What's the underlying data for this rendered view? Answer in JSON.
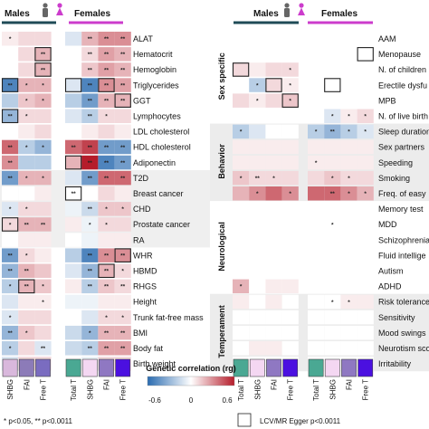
{
  "chart_data": {
    "type": "heatmap",
    "title": "",
    "legend": {
      "title": "Genetic correlation (rg)",
      "ticks": [
        "-0.6",
        "0",
        "0.6"
      ],
      "range": [
        -0.6,
        0.6
      ],
      "colors": {
        "low": "#2a6bb0",
        "mid": "#ffffff",
        "high": "#b51c2a"
      }
    },
    "group_labels": {
      "males": "Males",
      "females": "Females"
    },
    "columns_left": [
      "SHBG",
      "FAI",
      "Free T",
      "Total T",
      "SHBG",
      "FAI",
      "Free T"
    ],
    "columns_right": [
      "Total T",
      "SHBG",
      "FAI",
      "Free T",
      "Total T",
      "SHBG",
      "FAI",
      "Free T"
    ],
    "column_colors": {
      "left": [
        "#d9b8dc",
        "#8c7bb8",
        "#7a6cc0",
        "#4aa893",
        "#f4d7f2",
        "#8f78c2",
        "#4b10e0"
      ],
      "right": [
        "#4aa893",
        "#f4d7f2",
        "#8f78c2",
        "#4b10e0",
        "#4aa893",
        "#f4d7f2",
        "#8f78c2",
        "#4b10e0"
      ]
    },
    "rows_left": [
      "ALAT",
      "Hematocrit",
      "Hemoglobin",
      "Triglycerides",
      "GGT",
      "Lymphocytes",
      "LDL cholesterol",
      "HDL cholesterol",
      "Adiponectin",
      "T2D",
      "Breast cancer",
      "CHD",
      "Prostate cancer",
      "RA",
      "WHR",
      "HBMD",
      "RHGS",
      "Height",
      "Trunk fat-free mass",
      "BMI",
      "Body fat",
      "Birth weight"
    ],
    "rows_right": [
      "AAM",
      "Menopause",
      "N. of children",
      "Erectile dysfu",
      "MPB",
      "N. of live birth",
      "Sleep duration",
      "Sex partners",
      "Speeding",
      "Smoking",
      "Freq. of easy",
      "Memory test",
      "MDD",
      "Schizophrenia",
      "Fluid intellige",
      "Autism",
      "ADHD",
      "Risk tolerance",
      "Sensitivity",
      "Mood swings",
      "Neurotism sco",
      "Irritability"
    ],
    "categories_right": [
      {
        "label": "Sex specific",
        "from": 0,
        "to": 5
      },
      {
        "label": "Behavior",
        "from": 6,
        "to": 10
      },
      {
        "label": "Neurological",
        "from": 11,
        "to": 16
      },
      {
        "label": "Temperament",
        "from": 17,
        "to": 21
      }
    ],
    "values_left": [
      [
        0.05,
        0.1,
        0.1,
        -0.1,
        0.2,
        0.3,
        0.3
      ],
      [
        0.0,
        0.1,
        0.2,
        0.0,
        0.1,
        0.25,
        0.2
      ],
      [
        0.0,
        0.1,
        0.2,
        0.0,
        0.15,
        0.25,
        0.2
      ],
      [
        -0.5,
        0.2,
        0.2,
        -0.1,
        -0.5,
        0.3,
        0.25
      ],
      [
        -0.2,
        0.15,
        0.2,
        -0.2,
        -0.4,
        0.2,
        0.2
      ],
      [
        -0.3,
        0.1,
        0.1,
        -0.1,
        -0.2,
        0.1,
        0.1
      ],
      [
        0.0,
        0.05,
        0.1,
        0.0,
        0.05,
        0.1,
        0.05
      ],
      [
        0.4,
        -0.2,
        -0.3,
        0.4,
        0.5,
        -0.4,
        -0.4
      ],
      [
        0.3,
        -0.2,
        -0.2,
        0.2,
        0.6,
        -0.5,
        -0.4
      ],
      [
        -0.4,
        0.2,
        0.2,
        -0.1,
        -0.4,
        0.4,
        0.4
      ],
      [
        0.0,
        0.0,
        0.05,
        0.0,
        0.0,
        0.1,
        0.05
      ],
      [
        -0.1,
        0.1,
        0.1,
        -0.05,
        -0.15,
        0.15,
        0.15
      ],
      [
        0.1,
        0.2,
        0.2,
        0.05,
        -0.05,
        0.1,
        0.1
      ],
      [
        0.0,
        0.05,
        0.05,
        0.0,
        -0.05,
        0.05,
        0.05
      ],
      [
        -0.4,
        0.1,
        0.05,
        -0.2,
        -0.5,
        0.3,
        0.3
      ],
      [
        -0.3,
        0.2,
        0.15,
        -0.1,
        -0.3,
        0.2,
        0.1
      ],
      [
        -0.2,
        0.2,
        0.15,
        0.05,
        -0.2,
        0.15,
        0.1
      ],
      [
        -0.1,
        0.05,
        0.05,
        -0.05,
        -0.05,
        0.05,
        0.05
      ],
      [
        -0.1,
        0.1,
        0.1,
        0.0,
        -0.1,
        0.1,
        0.1
      ],
      [
        -0.3,
        0.15,
        0.1,
        -0.15,
        -0.3,
        0.2,
        0.2
      ],
      [
        -0.2,
        0.1,
        -0.1,
        -0.15,
        -0.2,
        0.25,
        0.25
      ],
      [
        -0.1,
        0.1,
        0.1,
        0.0,
        -0.05,
        0.1,
        0.1
      ]
    ],
    "stars_left": [
      [
        "*",
        "",
        "",
        "",
        "**",
        "**",
        "**"
      ],
      [
        "",
        "",
        "**",
        "",
        "**",
        "**",
        "**"
      ],
      [
        "",
        "",
        "**",
        "",
        "**",
        "**",
        "**"
      ],
      [
        "**",
        "*",
        "*",
        "",
        "**",
        "**",
        "**"
      ],
      [
        "",
        "*",
        "*",
        "",
        "**",
        "**",
        "**"
      ],
      [
        "**",
        "*",
        "",
        "",
        "**",
        "*",
        ""
      ],
      [
        "",
        "",
        "",
        "",
        "",
        "",
        ""
      ],
      [
        "**",
        "*",
        "*",
        "**",
        "**",
        "**",
        "**"
      ],
      [
        "**",
        "",
        "",
        "",
        "**",
        "**",
        "**"
      ],
      [
        "**",
        "*",
        "*",
        "",
        "**",
        "**",
        "**"
      ],
      [
        "",
        "",
        "",
        "**",
        "",
        "",
        ""
      ],
      [
        "*",
        "*",
        "",
        "",
        "**",
        "*",
        "*"
      ],
      [
        "*",
        "**",
        "**",
        "",
        "*",
        "*",
        ""
      ],
      [
        "",
        "",
        "",
        "",
        "",
        "",
        ""
      ],
      [
        "**",
        "*",
        "",
        "",
        "**",
        "**",
        "**"
      ],
      [
        "**",
        "**",
        "",
        "",
        "**",
        "**",
        "*"
      ],
      [
        "*",
        "**",
        "*",
        "",
        "**",
        "**",
        "**"
      ],
      [
        "",
        "",
        "*",
        "",
        "",
        "",
        ""
      ],
      [
        "*",
        "",
        "",
        "",
        "",
        "*",
        "*"
      ],
      [
        "**",
        "*",
        "",
        "",
        "*",
        "**",
        "**"
      ],
      [
        "*",
        "",
        "**",
        "",
        "**",
        "**",
        "**"
      ],
      [
        "*",
        "*",
        "*",
        "",
        "*",
        "*",
        "**"
      ]
    ],
    "boxes_left": [
      [
        1,
        2
      ],
      [
        2,
        2
      ],
      [
        3,
        0
      ],
      [
        3,
        3
      ],
      [
        3,
        5
      ],
      [
        4,
        6
      ],
      [
        5,
        0
      ],
      [
        8,
        3
      ],
      [
        10,
        3
      ],
      [
        12,
        0
      ],
      [
        14,
        6
      ],
      [
        15,
        5
      ],
      [
        16,
        1
      ]
    ],
    "values_right": [
      [
        0.0,
        0.0,
        0.0,
        0.0,
        0.0,
        0.0,
        0.0,
        0.0
      ],
      [
        0.0,
        0.0,
        0.0,
        0.0,
        0.0,
        0.0,
        0.0,
        0.0
      ],
      [
        0.1,
        0.05,
        0.1,
        0.1,
        0.0,
        0.0,
        0.0,
        0.0
      ],
      [
        0.0,
        -0.2,
        0.1,
        0.05,
        0.0,
        0.0,
        0.0,
        0.0
      ],
      [
        0.1,
        0.05,
        0.1,
        0.15,
        0.0,
        0.0,
        0.0,
        0.0
      ],
      [
        0.0,
        0.0,
        0.0,
        0.0,
        0.0,
        -0.1,
        0.05,
        0.1
      ],
      [
        -0.2,
        -0.1,
        0.0,
        0.0,
        -0.2,
        -0.3,
        -0.2,
        -0.1
      ],
      [
        0.05,
        0.05,
        0.05,
        0.05,
        0.05,
        0.05,
        0.05,
        0.05
      ],
      [
        0.05,
        0.05,
        0.05,
        0.05,
        0.05,
        0.05,
        0.05,
        0.05
      ],
      [
        0.15,
        0.1,
        0.1,
        0.1,
        0.1,
        0.15,
        0.1,
        0.1
      ],
      [
        0.2,
        0.3,
        0.4,
        0.3,
        0.4,
        0.4,
        0.3,
        0.2
      ],
      [
        0.0,
        0.0,
        0.0,
        0.0,
        0.0,
        0.0,
        0.0,
        0.0
      ],
      [
        0.0,
        0.0,
        0.0,
        0.0,
        0.0,
        0.0,
        0.0,
        0.0
      ],
      [
        0.0,
        0.0,
        0.0,
        0.0,
        0.0,
        0.0,
        0.0,
        0.0
      ],
      [
        0.0,
        0.0,
        0.0,
        0.0,
        0.0,
        0.0,
        0.0,
        0.0
      ],
      [
        0.0,
        0.0,
        0.0,
        0.0,
        0.0,
        0.0,
        0.0,
        0.0
      ],
      [
        0.2,
        0.0,
        0.05,
        0.05,
        0.0,
        0.0,
        0.0,
        0.0
      ],
      [
        0.05,
        0.0,
        0.05,
        0.0,
        0.0,
        0.0,
        0.05,
        0.05
      ],
      [
        0.0,
        0.0,
        0.0,
        0.0,
        0.0,
        0.0,
        0.0,
        0.0
      ],
      [
        0.0,
        0.0,
        0.0,
        0.0,
        0.0,
        0.0,
        0.0,
        0.0
      ],
      [
        0.0,
        0.05,
        0.05,
        0.0,
        0.0,
        0.0,
        0.0,
        0.0
      ],
      [
        0.0,
        0.0,
        0.0,
        0.0,
        0.0,
        0.0,
        0.0,
        0.0
      ]
    ],
    "stars_right": [
      [
        "",
        "",
        "",
        "",
        "",
        "",
        "",
        ""
      ],
      [
        "",
        "",
        "",
        "",
        "",
        "",
        "",
        ""
      ],
      [
        "",
        "",
        "",
        "*",
        "",
        "",
        "",
        ""
      ],
      [
        "",
        "*",
        "",
        "*",
        "",
        "",
        "",
        ""
      ],
      [
        "",
        "*",
        "",
        "*",
        "",
        "",
        "",
        ""
      ],
      [
        "",
        "",
        "",
        "",
        "",
        "*",
        "*",
        "*"
      ],
      [
        "*",
        "",
        "",
        "",
        "*",
        "**",
        "*",
        "*"
      ],
      [
        "",
        "",
        "",
        "",
        "",
        "",
        "",
        ""
      ],
      [
        "",
        "",
        "",
        "",
        "*",
        "",
        "",
        ""
      ],
      [
        "*",
        "**",
        "*",
        "",
        "",
        "*",
        "*",
        ""
      ],
      [
        "",
        "*",
        "",
        "*",
        "",
        "**",
        "*",
        "*"
      ],
      [
        "",
        "",
        "",
        "",
        "",
        "",
        "",
        ""
      ],
      [
        "",
        "",
        "",
        "",
        "",
        "*",
        "",
        ""
      ],
      [
        "",
        "",
        "",
        "",
        "",
        "",
        "",
        ""
      ],
      [
        "",
        "",
        "",
        "",
        "",
        "",
        "",
        ""
      ],
      [
        "",
        "",
        "",
        "",
        "",
        "",
        "",
        ""
      ],
      [
        "*",
        "",
        "",
        "",
        "",
        "",
        "",
        ""
      ],
      [
        "",
        "",
        "",
        "",
        "",
        "*",
        "*",
        ""
      ],
      [
        "",
        "",
        "",
        "",
        "",
        "",
        "",
        ""
      ],
      [
        "",
        "",
        "",
        "",
        "",
        "",
        "",
        ""
      ],
      [
        "",
        "",
        "",
        "",
        "",
        "",
        "",
        ""
      ],
      [
        "",
        "",
        "",
        "*",
        "",
        "",
        "",
        ""
      ]
    ],
    "boxes_right": [
      [
        1,
        7
      ],
      [
        2,
        0
      ],
      [
        3,
        2
      ],
      [
        4,
        3
      ],
      [
        3,
        5
      ]
    ],
    "footnote_sig": "* p<0.05, ** p<0.0011",
    "footnote_box": "LCV/MR Egger p<0.0011"
  }
}
